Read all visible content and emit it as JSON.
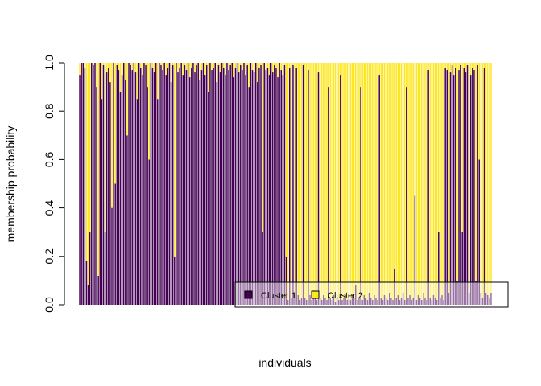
{
  "chart_data": {
    "type": "bar",
    "stacked": true,
    "xlabel": "individuals",
    "ylabel": "membership probability",
    "ylim": [
      0,
      1
    ],
    "yticks": [
      "0.0",
      "0.2",
      "0.4",
      "0.6",
      "0.8",
      "1.0"
    ],
    "legend_position": "bottom-right",
    "colors": {
      "Cluster 1": "#440154",
      "Cluster 2": "#FDE725"
    },
    "series": [
      {
        "name": "Cluster 1",
        "values": [
          0.95,
          1.0,
          1.0,
          0.98,
          0.18,
          0.08,
          0.3,
          1.0,
          0.99,
          1.0,
          0.9,
          0.12,
          1.0,
          0.85,
          0.99,
          0.3,
          0.96,
          0.98,
          0.92,
          0.4,
          1.0,
          0.5,
          0.99,
          0.97,
          0.88,
          0.95,
          1.0,
          0.93,
          0.7,
          1.0,
          0.99,
          0.97,
          1.0,
          0.96,
          0.85,
          1.0,
          0.98,
          0.95,
          1.0,
          0.99,
          0.9,
          0.6,
          1.0,
          0.98,
          0.96,
          1.0,
          0.85,
          1.0,
          0.99,
          0.97,
          1.0,
          0.95,
          0.98,
          1.0,
          0.92,
          0.99,
          0.2,
          1.0,
          0.96,
          0.98,
          1.0,
          0.95,
          0.99,
          0.97,
          1.0,
          0.94,
          0.98,
          1.0,
          0.96,
          0.99,
          1.0,
          0.93,
          0.97,
          1.0,
          0.95,
          0.99,
          0.88,
          1.0,
          0.97,
          0.98,
          1.0,
          0.92,
          0.99,
          0.96,
          1.0,
          0.98,
          0.95,
          1.0,
          0.97,
          0.99,
          1.0,
          0.94,
          0.98,
          1.0,
          0.96,
          0.99,
          0.97,
          1.0,
          0.95,
          0.99,
          0.9,
          1.0,
          0.97,
          0.96,
          1.0,
          0.92,
          0.98,
          0.99,
          0.3,
          1.0,
          0.97,
          0.98,
          0.95,
          1.0,
          0.96,
          0.99,
          0.98,
          0.94,
          1.0,
          0.97,
          0.95,
          0.99,
          0.2,
          0.02,
          0.98,
          0.03,
          0.99,
          0.05,
          0.98,
          0.04,
          0.02,
          0.03,
          0.99,
          0.03,
          0.02,
          0.97,
          0.04,
          0.02,
          0.03,
          0.05,
          0.02,
          0.96,
          0.03,
          0.02,
          0.04,
          0.03,
          0.02,
          0.9,
          0.03,
          0.02,
          0.04,
          0.01,
          0.03,
          0.02,
          0.95,
          0.02,
          0.03,
          0.04,
          0.02,
          0.03,
          0.02,
          0.04,
          0.03,
          0.08,
          0.02,
          0.03,
          0.9,
          0.02,
          0.04,
          0.03,
          0.02,
          0.05,
          0.03,
          0.02,
          0.04,
          0.03,
          0.02,
          0.95,
          0.03,
          0.02,
          0.04,
          0.03,
          0.02,
          0.05,
          0.03,
          0.02,
          0.15,
          0.03,
          0.04,
          0.02,
          0.03,
          0.05,
          0.02,
          0.9,
          0.03,
          0.04,
          0.02,
          0.03,
          0.45,
          0.02,
          0.04,
          0.03,
          0.02,
          0.05,
          0.03,
          0.02,
          0.97,
          0.03,
          0.02,
          0.04,
          0.03,
          0.02,
          0.3,
          0.03,
          0.04,
          0.02,
          0.98,
          0.97,
          0.05,
          0.96,
          0.99,
          0.95,
          0.98,
          0.1,
          0.97,
          0.99,
          0.3,
          0.98,
          0.96,
          0.99,
          0.05,
          0.95,
          0.98,
          0.97,
          0.1,
          0.99,
          0.6,
          0.05,
          0.03,
          0.98,
          0.05,
          0.04,
          0.03,
          0.05
        ]
      },
      {
        "name": "Cluster 2",
        "values_rule": "1 - Cluster 1"
      }
    ]
  }
}
